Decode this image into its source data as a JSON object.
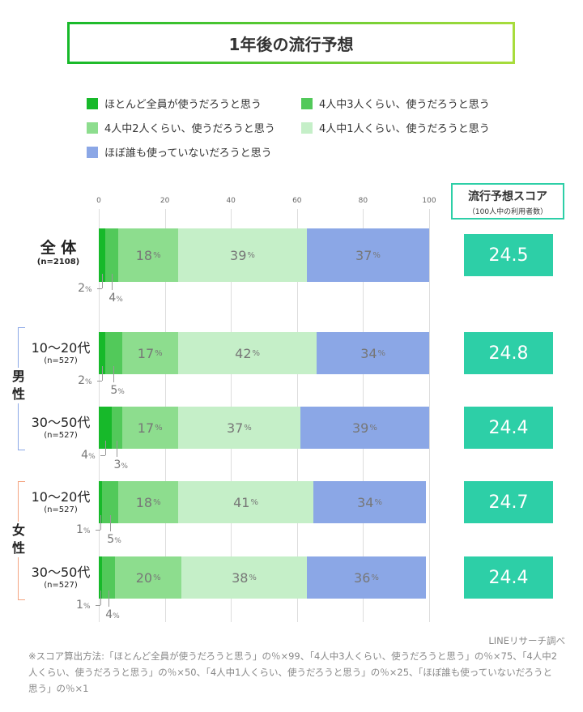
{
  "title": "1年後の流行予想",
  "score_header": {
    "title": "流行予想スコア",
    "subtitle": "（100人中の利用者数）"
  },
  "source": "LINEリサーチ調べ",
  "note": "※スコア算出方法:「ほとんど全員が使うだろうと思う」の％×99、「4人中3人くらい、使うだろうと思う」の％×75、「4人中2人くらい、使うだろうと思う」の％×50、「4人中1人くらい、使うだろうと思う」の％×25、「ほぼ誰も使っていないだろうと思う」の％×1",
  "groups": [
    {
      "label": "男性",
      "color": "#8ba7e6"
    },
    {
      "label": "女性",
      "color": "#f4a582"
    }
  ],
  "chart_data": {
    "type": "bar",
    "orientation": "horizontal",
    "stacked": true,
    "xlim": [
      0,
      100
    ],
    "xticks": [
      0,
      20,
      40,
      60,
      80,
      100
    ],
    "unit": "%",
    "legend": [
      "ほとんど全員が使うだろうと思う",
      "4人中3人くらい、使うだろうと思う",
      "4人中2人くらい、使うだろうと思う",
      "4人中1人くらい、使うだろうと思う",
      "ほぼ誰も使っていないだろうと思う"
    ],
    "colors": [
      "#17b92a",
      "#52c95a",
      "#8ddd8e",
      "#c5efc8",
      "#8ba7e6"
    ],
    "rows": [
      {
        "label": "全 体",
        "n": "(n=2108)",
        "values": [
          2,
          4,
          18,
          39,
          37
        ],
        "score": "24.5"
      },
      {
        "label": "10〜20代",
        "n": "(n=527)",
        "group": "男性",
        "values": [
          2,
          5,
          17,
          42,
          34
        ],
        "score": "24.8"
      },
      {
        "label": "30〜50代",
        "n": "(n=527)",
        "group": "男性",
        "values": [
          4,
          3,
          17,
          37,
          39
        ],
        "score": "24.4"
      },
      {
        "label": "10〜20代",
        "n": "(n=527)",
        "group": "女性",
        "values": [
          1,
          5,
          18,
          41,
          34
        ],
        "score": "24.7"
      },
      {
        "label": "30〜50代",
        "n": "(n=527)",
        "group": "女性",
        "values": [
          1,
          4,
          20,
          38,
          36
        ],
        "score": "24.4"
      }
    ]
  }
}
